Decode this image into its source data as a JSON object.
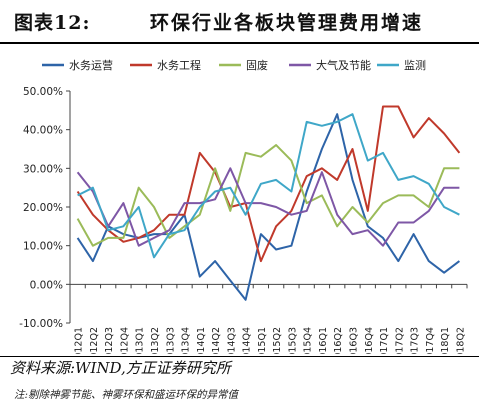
{
  "figure": {
    "label": "图表12:",
    "title": "环保行业各板块管理费用增速"
  },
  "source_text": "资料来源:WIND,方正证券研究所",
  "note_text": "注:剔除神雾节能、神雾环保和盛运环保的异常值",
  "chart_data": {
    "type": "line",
    "ylim": [
      -10,
      50
    ],
    "yticks": [
      -10,
      0,
      10,
      20,
      30,
      40,
      50
    ],
    "ytick_labels": [
      "-10.00%",
      "0.00%",
      "10.00%",
      "20.00%",
      "30.00%",
      "40.00%",
      "50.00%"
    ],
    "grid": false,
    "legend_position": "top",
    "categories": [
      "2012Q1",
      "2012Q2",
      "2012Q3",
      "2012Q4",
      "2013Q1",
      "2013Q2",
      "2013Q3",
      "2013Q4",
      "2014Q1",
      "2014Q2",
      "2014Q3",
      "2014Q4",
      "2015Q1",
      "2015Q2",
      "2015Q3",
      "2015Q4",
      "2016Q1",
      "2016Q2",
      "2016Q3",
      "2016Q4",
      "2017Q1",
      "2017Q2",
      "2017Q3",
      "2017Q4",
      "2018Q1",
      "2018Q2"
    ],
    "series": [
      {
        "name": "水务运营",
        "color": "#2E64A8",
        "values": [
          12,
          6,
          15,
          13,
          12,
          13,
          13,
          18,
          2,
          6,
          1,
          -4,
          13,
          9,
          10,
          24,
          35,
          44,
          27,
          15,
          12,
          6,
          13,
          6,
          3,
          6
        ]
      },
      {
        "name": "水务工程",
        "color": "#C0392B",
        "values": [
          24,
          18,
          14,
          11,
          12,
          14,
          18,
          18,
          34,
          29,
          20,
          21,
          6,
          15,
          19,
          28,
          30,
          27,
          35,
          19,
          46,
          46,
          38,
          43,
          39,
          34
        ]
      },
      {
        "name": "固废",
        "color": "#9BBB59",
        "values": [
          17,
          10,
          12,
          12,
          25,
          20,
          12,
          15,
          18,
          30,
          19,
          34,
          33,
          36,
          32,
          21,
          23,
          15,
          20,
          16,
          21,
          23,
          23,
          20,
          30,
          30
        ]
      },
      {
        "name": "大气及节能",
        "color": "#7E57A6",
        "values": [
          29,
          24,
          15,
          21,
          10,
          12,
          14,
          21,
          21,
          22,
          30,
          21,
          21,
          20,
          18,
          19,
          29,
          18,
          13,
          14,
          10,
          16,
          16,
          19,
          25,
          25
        ]
      },
      {
        "name": "监测",
        "color": "#3FA7C8",
        "values": [
          23,
          25,
          14,
          15,
          20,
          7,
          13,
          14,
          20,
          24,
          25,
          18,
          26,
          27,
          24,
          42,
          41,
          42,
          44,
          32,
          34,
          27,
          28,
          26,
          20,
          18
        ]
      }
    ]
  }
}
